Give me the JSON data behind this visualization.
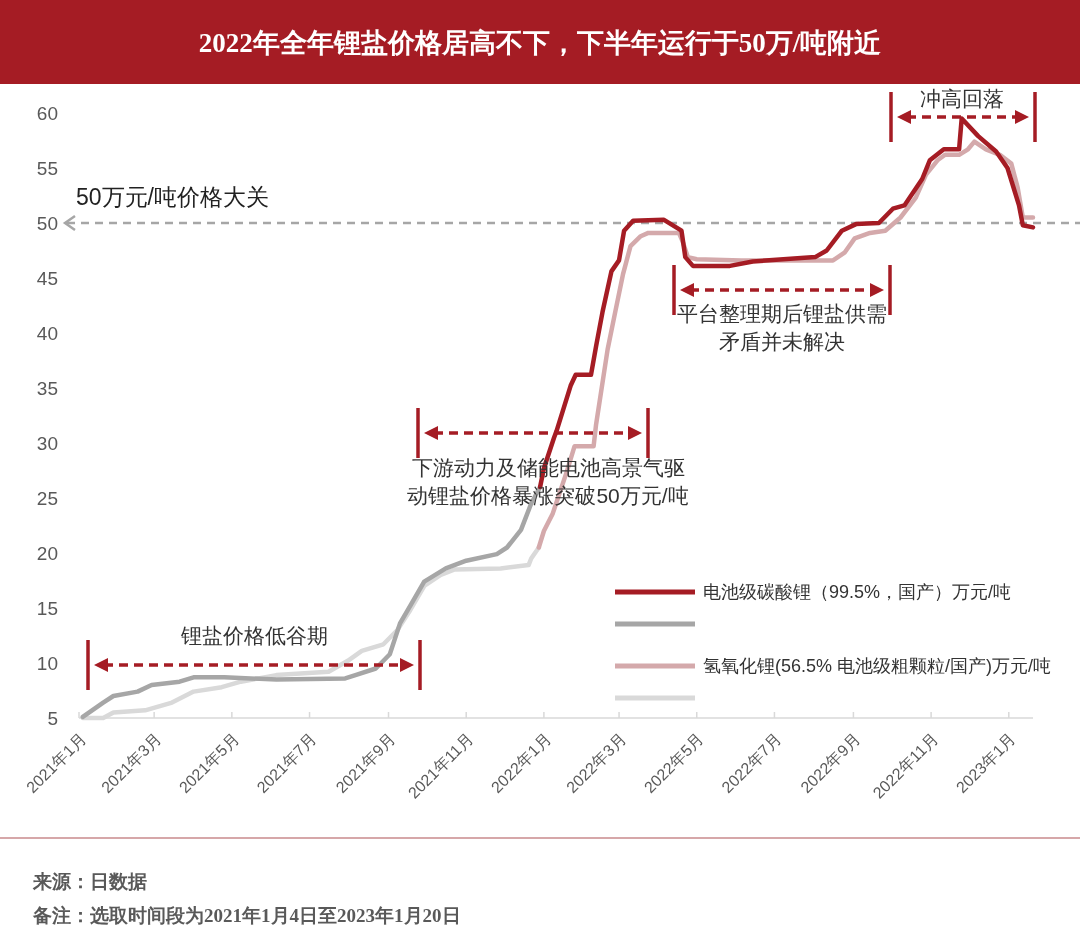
{
  "chart_data": {
    "type": "line",
    "title": "2022年全年锂盐价格居高不下，下半年运行于50万/吨附近",
    "ylim": [
      5,
      60
    ],
    "yticks": [
      5,
      10,
      15,
      20,
      25,
      30,
      35,
      40,
      45,
      50,
      55,
      60
    ],
    "xlim": [
      "2021-01-01",
      "2023-01-20"
    ],
    "xticks": [
      {
        "value": "2021-01-01",
        "label": "2021年1月"
      },
      {
        "value": "2021-03-01",
        "label": "2021年3月"
      },
      {
        "value": "2021-05-01",
        "label": "2021年5月"
      },
      {
        "value": "2021-07-01",
        "label": "2021年7月"
      },
      {
        "value": "2021-09-01",
        "label": "2021年9月"
      },
      {
        "value": "2021-11-01",
        "label": "2021年11月"
      },
      {
        "value": "2022-01-01",
        "label": "2022年1月"
      },
      {
        "value": "2022-03-01",
        "label": "2022年3月"
      },
      {
        "value": "2022-05-01",
        "label": "2022年5月"
      },
      {
        "value": "2022-07-01",
        "label": "2022年7月"
      },
      {
        "value": "2022-09-01",
        "label": "2022年9月"
      },
      {
        "value": "2022-11-01",
        "label": "2022年11月"
      },
      {
        "value": "2023-01-01",
        "label": "2023年1月"
      }
    ],
    "grid": false,
    "legend": "bottom right",
    "marker": "none",
    "line_style": "solid",
    "series": [
      {
        "name": "电池级碳酸锂（99.5%，国产）万元/吨",
        "color": "#a51c24",
        "x": [
          "2021-12-29",
          "2022-01-01",
          "2022-01-09",
          "2022-01-11",
          "2022-01-22",
          "2022-01-26",
          "2022-02-07",
          "2022-02-11",
          "2022-02-16",
          "2022-02-23",
          "2022-03-01",
          "2022-03-05",
          "2022-03-12",
          "2022-04-05",
          "2022-04-12",
          "2022-04-19",
          "2022-04-22",
          "2022-04-28",
          "2022-05-27",
          "2022-06-14",
          "2022-08-02",
          "2022-08-11",
          "2022-08-23",
          "2022-09-03",
          "2022-09-21",
          "2022-10-02",
          "2022-10-11",
          "2022-10-25",
          "2022-10-31",
          "2022-11-11",
          "2022-11-23",
          "2022-11-25",
          "2022-12-08",
          "2022-12-22",
          "2022-12-31",
          "2023-01-09",
          "2023-01-12",
          "2023-01-20"
        ],
        "values": [
          26.0,
          27.7,
          30.5,
          31.1,
          35.2,
          36.2,
          36.2,
          38.8,
          41.9,
          45.6,
          46.6,
          49.3,
          50.2,
          50.3,
          49.8,
          49.3,
          46.9,
          46.1,
          46.1,
          46.5,
          46.9,
          47.5,
          49.3,
          49.9,
          50.0,
          51.3,
          51.6,
          54.0,
          55.7,
          56.7,
          56.7,
          59.5,
          57.9,
          56.5,
          55.0,
          51.6,
          49.8,
          49.6
        ]
      },
      {
        "color": "#a6a6a6",
        "x": [
          "2021-01-04",
          "2021-01-20",
          "2021-01-28",
          "2021-02-16",
          "2021-02-27",
          "2021-03-21",
          "2021-04-01",
          "2021-04-25",
          "2021-06-05",
          "2021-07-29",
          "2021-08-06",
          "2021-08-22",
          "2021-09-02",
          "2021-09-10",
          "2021-09-18",
          "2021-09-29",
          "2021-10-16",
          "2021-11-01",
          "2021-11-25",
          "2021-12-03",
          "2021-12-14",
          "2021-12-22",
          "2021-12-29"
        ],
        "values": [
          5.1,
          6.4,
          7.0,
          7.4,
          8.0,
          8.3,
          8.7,
          8.7,
          8.5,
          8.6,
          8.9,
          9.5,
          10.8,
          13.6,
          15.2,
          17.4,
          18.6,
          19.3,
          19.9,
          20.5,
          22.1,
          24.5,
          26.0
        ]
      },
      {
        "name": "氢氧化锂(56.5% 电池级粗颗粒/国产)万元/吨",
        "color": "#d4a9ab",
        "x": [
          "2021-12-28",
          "2022-01-01",
          "2022-01-08",
          "2022-01-19",
          "2022-01-25",
          "2022-02-09",
          "2022-02-11",
          "2022-02-20",
          "2022-02-26",
          "2022-03-04",
          "2022-03-10",
          "2022-03-18",
          "2022-03-24",
          "2022-04-17",
          "2022-04-20",
          "2022-04-24",
          "2022-05-01",
          "2022-06-05",
          "2022-08-16",
          "2022-08-25",
          "2022-09-02",
          "2022-09-14",
          "2022-09-26",
          "2022-10-08",
          "2022-10-20",
          "2022-10-28",
          "2022-11-06",
          "2022-11-12",
          "2022-11-23",
          "2022-11-30",
          "2022-12-05",
          "2022-12-14",
          "2022-12-25",
          "2023-01-03",
          "2023-01-08",
          "2023-01-12",
          "2023-01-20"
        ],
        "values": [
          20.5,
          22.0,
          23.6,
          27.4,
          29.7,
          29.7,
          31.7,
          38.5,
          41.9,
          45.3,
          47.9,
          48.8,
          49.1,
          49.1,
          48.3,
          46.9,
          46.7,
          46.6,
          46.6,
          47.3,
          48.6,
          49.1,
          49.3,
          50.5,
          52.3,
          54.4,
          55.7,
          56.2,
          56.2,
          56.7,
          57.4,
          56.7,
          56.2,
          55.4,
          53.2,
          50.5,
          50.5
        ]
      },
      {
        "color": "#d9d9d9",
        "x": [
          "2021-01-04",
          "2021-01-20",
          "2021-01-28",
          "2021-02-22",
          "2021-03-15",
          "2021-04-01",
          "2021-04-23",
          "2021-05-08",
          "2021-06-05",
          "2021-07-16",
          "2021-07-31",
          "2021-08-11",
          "2021-08-28",
          "2021-09-08",
          "2021-09-18",
          "2021-09-29",
          "2021-10-12",
          "2021-10-23",
          "2021-11-28",
          "2021-12-20",
          "2021-12-22",
          "2021-12-28"
        ],
        "values": [
          5.0,
          5.0,
          5.5,
          5.7,
          6.4,
          7.4,
          7.8,
          8.3,
          8.9,
          9.2,
          10.2,
          11.1,
          11.7,
          13.0,
          14.8,
          17.0,
          18.0,
          18.5,
          18.6,
          18.9,
          19.5,
          20.5
        ]
      }
    ],
    "ref_lines": [
      {
        "axis": "y",
        "value": 50,
        "label": "50万元/吨价格大关",
        "color": "#a6a6a6",
        "line_style": "dashed"
      }
    ],
    "annotations": [
      "锂盐价格低谷期",
      "下游动力及储能电池高景气驱动锂盐价格暴涨突破50万元/吨",
      "平台整理期后锂盐供需矛盾并未解决",
      "冲高回落",
      "来源：日数据",
      "备注：选取时间段为2021年1月4日至2023年1月20日"
    ]
  }
}
